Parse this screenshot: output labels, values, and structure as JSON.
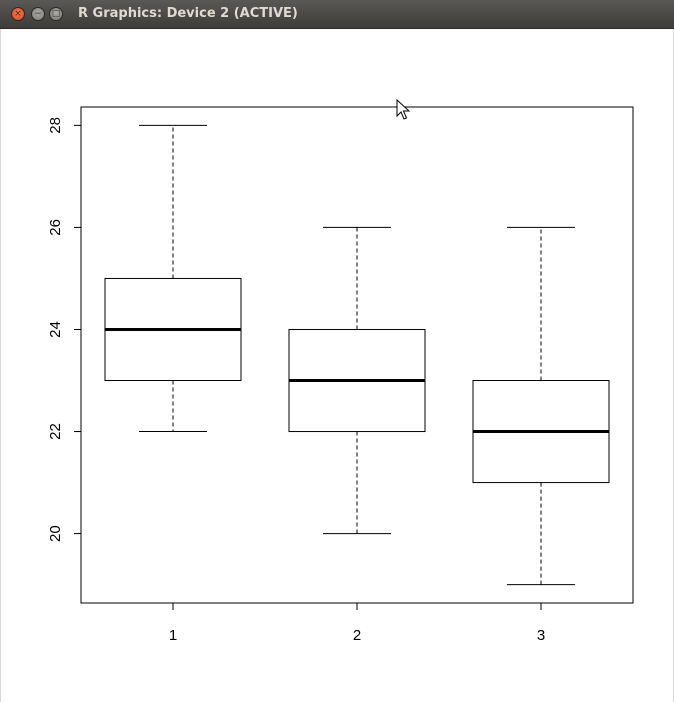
{
  "window": {
    "title": "R Graphics: Device 2 (ACTIVE)",
    "close_glyph": "×",
    "minimize_glyph": "−",
    "maximize_glyph": "□",
    "icons": [
      "close-icon",
      "minimize-icon",
      "maximize-icon",
      "mouse-cursor-icon"
    ]
  },
  "chart_data": {
    "type": "boxplot",
    "categories": [
      "1",
      "2",
      "3"
    ],
    "boxes": [
      {
        "category": "1",
        "whisker_low": 22,
        "q1": 23,
        "median": 24,
        "q3": 25,
        "whisker_high": 28
      },
      {
        "category": "2",
        "whisker_low": 20,
        "q1": 22,
        "median": 23,
        "q3": 24,
        "whisker_high": 26
      },
      {
        "category": "3",
        "whisker_low": 19,
        "q1": 21,
        "median": 22,
        "q3": 23,
        "whisker_high": 26
      }
    ],
    "y_ticks": [
      20,
      22,
      24,
      26,
      28
    ],
    "y_tick_labels": [
      "20",
      "22",
      "24",
      "26",
      "28"
    ],
    "x_tick_labels": [
      "1",
      "2",
      "3"
    ],
    "ylim": [
      18.64,
      28.36
    ],
    "xlim": [
      0.5,
      3.5
    ],
    "title": "",
    "xlabel": "",
    "ylabel": "",
    "grid": false,
    "colors": {
      "box_border": "#000000",
      "box_fill": "#ffffff",
      "median": "#000000"
    }
  }
}
